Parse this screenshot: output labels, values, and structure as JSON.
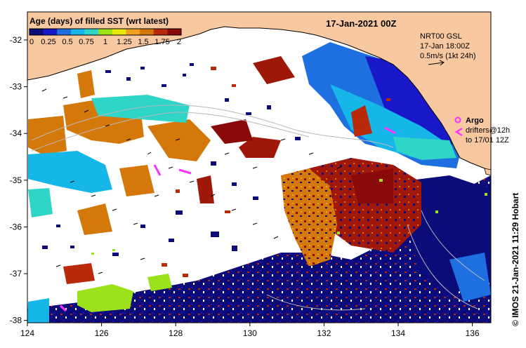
{
  "title": "17-Jan-2021 00Z",
  "colorbar": {
    "title": "Age (days) of filled SST (wrt latest)",
    "tick_labels": [
      "0",
      "0.25",
      "0.5",
      "0.75",
      "1",
      "1.25",
      "1.5",
      "1.75",
      "2"
    ],
    "range": [
      0,
      2
    ],
    "colors": [
      "#0b0b7a",
      "#1818c8",
      "#1e6fe0",
      "#16b7e8",
      "#2fd6c8",
      "#9be21a",
      "#e8e80a",
      "#f0a020",
      "#d4780a",
      "#b82a0a",
      "#8a0a0a"
    ]
  },
  "current_info": {
    "line1": "NRT00 GSL",
    "line2": "17-Jan 18:00Z",
    "line3": "0.5m/s (1kt 24h)"
  },
  "legend": {
    "argo_label": "Argo",
    "drifters_line1": "drifters@12h",
    "drifters_line2": "to 17/01 12Z",
    "argo_color": "#ff33ff",
    "drifter_color": "#ff33ff"
  },
  "axes": {
    "x_ticks": [
      "124",
      "126",
      "128",
      "130",
      "132",
      "134",
      "136"
    ],
    "y_ticks": [
      "-32",
      "-33",
      "-34",
      "-35",
      "-36",
      "-37",
      "-38"
    ],
    "lon_range": [
      124,
      136.5
    ],
    "lat_range": [
      -38.05,
      -31.4
    ]
  },
  "credit": "© IMOS 21-Jan-2021 11:29 Hobart",
  "colors": {
    "land": "#f8c8a0",
    "ocean_unfilled": "#ffffff"
  }
}
